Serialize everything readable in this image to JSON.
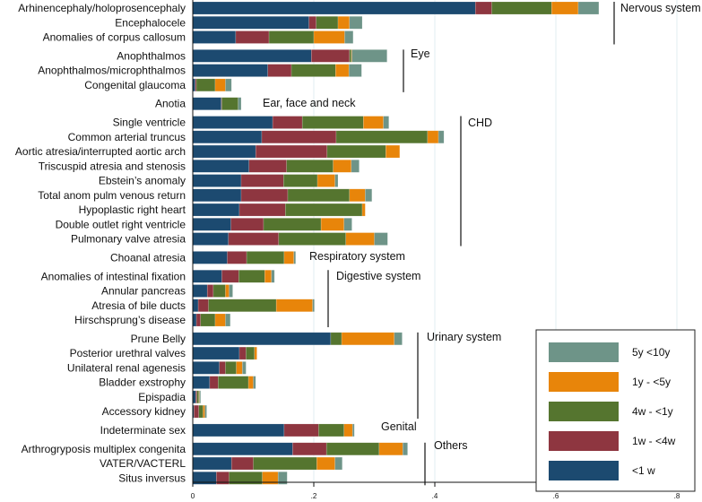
{
  "chart_data": {
    "type": "bar",
    "orientation": "horizontal",
    "stacked": true,
    "title": "",
    "xlabel": "",
    "ylabel": "",
    "xlim": [
      0,
      0.8
    ],
    "xticks": [
      0,
      0.2,
      0.4,
      0.6,
      0.8
    ],
    "xtick_labels": [
      "0",
      ".2",
      ".4",
      ".6",
      ".8"
    ],
    "grid": true,
    "legend_position": "bottom-right",
    "series": [
      {
        "name": "<1 w",
        "color": "#1c4a70"
      },
      {
        "name": "1w - <4w",
        "color": "#8e3640"
      },
      {
        "name": "4w - <1y",
        "color": "#55752f"
      },
      {
        "name": "1y - <5y",
        "color": "#e8850a"
      },
      {
        "name": "5y <10y",
        "color": "#6e9488"
      }
    ],
    "legend_order": [
      4,
      3,
      2,
      1,
      0
    ],
    "groups": [
      {
        "name": "Nervous system",
        "bracket": true,
        "categories": [
          {
            "label": "Arhinencephaly/holoprosencephaly",
            "values": [
              0.467,
              0.027,
              0.099,
              0.044,
              0.034
            ]
          },
          {
            "label": "Encephalocele",
            "values": [
              0.192,
              0.012,
              0.036,
              0.019,
              0.021
            ]
          },
          {
            "label": "Anomalies of corpus callosum",
            "values": [
              0.071,
              0.055,
              0.074,
              0.051,
              0.014
            ]
          }
        ]
      },
      {
        "name": "Eye",
        "bracket": true,
        "categories": [
          {
            "label": "Anophthalmos",
            "values": [
              0.196,
              0.063,
              0.003,
              0.001,
              0.058
            ]
          },
          {
            "label": "Anophthalmos/microphthalmos",
            "values": [
              0.124,
              0.039,
              0.073,
              0.022,
              0.021
            ]
          },
          {
            "label": "Congenital glaucoma",
            "values": [
              0.004,
              0.002,
              0.031,
              0.017,
              0.01
            ]
          }
        ]
      },
      {
        "name": "Ear, face and neck",
        "bracket": false,
        "categories": [
          {
            "label": "Anotia",
            "values": [
              0.047,
              0.001,
              0.027,
              0.0,
              0.005
            ]
          }
        ]
      },
      {
        "name": "CHD",
        "bracket": true,
        "categories": [
          {
            "label": "Single ventricle",
            "values": [
              0.132,
              0.049,
              0.101,
              0.033,
              0.009
            ]
          },
          {
            "label": "Common arterial truncus",
            "values": [
              0.114,
              0.123,
              0.151,
              0.018,
              0.009
            ]
          },
          {
            "label": "Aortic atresia/interrupted aortic arch",
            "values": [
              0.104,
              0.118,
              0.097,
              0.023,
              0.0
            ]
          },
          {
            "label": "Triscuspid atresia and stenosis",
            "values": [
              0.093,
              0.062,
              0.077,
              0.03,
              0.013
            ]
          },
          {
            "label": "Ebstein’s anomaly",
            "values": [
              0.08,
              0.07,
              0.056,
              0.029,
              0.005
            ]
          },
          {
            "label": "Total anom pulm venous return",
            "values": [
              0.08,
              0.077,
              0.102,
              0.026,
              0.011
            ]
          },
          {
            "label": "Hypoplastic right heart",
            "values": [
              0.077,
              0.076,
              0.127,
              0.005,
              0.0
            ]
          },
          {
            "label": "Double outlet right ventricle",
            "values": [
              0.063,
              0.054,
              0.095,
              0.038,
              0.013
            ]
          },
          {
            "label": "Pulmonary valve atresia",
            "values": [
              0.059,
              0.083,
              0.111,
              0.047,
              0.022
            ]
          }
        ]
      },
      {
        "name": "Respiratory system",
        "bracket": false,
        "categories": [
          {
            "label": "Choanal atresia",
            "values": [
              0.057,
              0.032,
              0.062,
              0.016,
              0.003
            ]
          }
        ]
      },
      {
        "name": "Digestive system",
        "bracket": true,
        "categories": [
          {
            "label": "Anomalies of intestinal fixation",
            "values": [
              0.048,
              0.028,
              0.043,
              0.011,
              0.005
            ]
          },
          {
            "label": "Annular pancreas",
            "values": [
              0.024,
              0.01,
              0.02,
              0.006,
              0.006
            ]
          },
          {
            "label": "Atresia of bile ducts",
            "values": [
              0.009,
              0.017,
              0.112,
              0.06,
              0.003
            ]
          },
          {
            "label": "Hirschsprung’s disease",
            "values": [
              0.006,
              0.007,
              0.024,
              0.017,
              0.008
            ]
          }
        ]
      },
      {
        "name": "Urinary system",
        "bracket": true,
        "categories": [
          {
            "label": "Prune Belly",
            "values": [
              0.228,
              0.0,
              0.018,
              0.087,
              0.013
            ]
          },
          {
            "label": "Posterior urethral valves",
            "values": [
              0.077,
              0.011,
              0.014,
              0.004,
              0.0
            ]
          },
          {
            "label": "Unilateral renal agenesis",
            "values": [
              0.044,
              0.01,
              0.018,
              0.01,
              0.006
            ]
          },
          {
            "label": "Bladder exstrophy",
            "values": [
              0.028,
              0.014,
              0.05,
              0.008,
              0.004
            ]
          },
          {
            "label": "Epispadia",
            "values": [
              0.005,
              0.002,
              0.003,
              0.001,
              0.002
            ]
          },
          {
            "label": "Accessory kidney",
            "values": [
              0.002,
              0.008,
              0.007,
              0.003,
              0.003
            ]
          }
        ]
      },
      {
        "name": "Genital",
        "bracket": false,
        "categories": [
          {
            "label": "Indeterminate sex",
            "values": [
              0.151,
              0.057,
              0.042,
              0.014,
              0.003
            ]
          }
        ]
      },
      {
        "name": "Others",
        "bracket": true,
        "categories": [
          {
            "label": "Arthrogryposis multiplex congenita",
            "values": [
              0.165,
              0.056,
              0.087,
              0.039,
              0.008
            ]
          },
          {
            "label": "VATER/VACTERL",
            "values": [
              0.064,
              0.036,
              0.105,
              0.03,
              0.012
            ]
          },
          {
            "label": "Situs inversus",
            "values": [
              0.039,
              0.021,
              0.055,
              0.026,
              0.015
            ]
          }
        ]
      }
    ]
  }
}
